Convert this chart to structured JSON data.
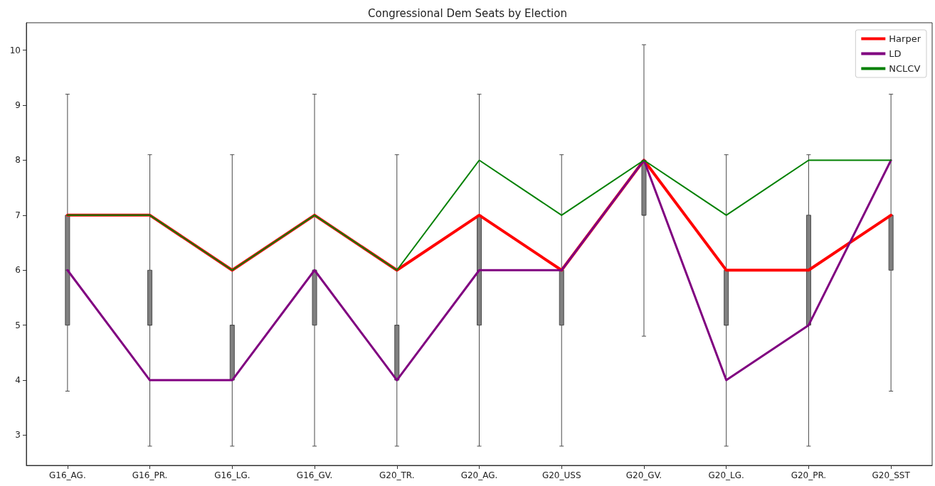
{
  "chart_data": {
    "type": "line",
    "title": "Congressional Dem Seats by Election",
    "categories": [
      "G16_AG.",
      "G16_PR.",
      "G16_LG.",
      "G16_GV.",
      "G20_TR.",
      "G20_AG.",
      "G20_USS",
      "G20_GV.",
      "G20_LG.",
      "G20_PR.",
      "G20_SST"
    ],
    "ylim": [
      2.45,
      10.5
    ],
    "yticks": [
      3,
      4,
      5,
      6,
      7,
      8,
      9,
      10
    ],
    "grid": false,
    "legend": "top right",
    "marker": "none",
    "line_style": "solid",
    "series": [
      {
        "type": "box",
        "color": "#808080",
        "boxes": [
          {
            "low": 3.8,
            "q1": 5,
            "median": 6,
            "q3": 7,
            "high": 9.2
          },
          {
            "low": 2.8,
            "q1": 5,
            "median": 5,
            "q3": 6,
            "high": 8.1
          },
          {
            "low": 2.8,
            "q1": 4,
            "median": 5,
            "q3": 5,
            "high": 8.1
          },
          {
            "low": 2.8,
            "q1": 5,
            "median": 6,
            "q3": 6,
            "high": 9.2
          },
          {
            "low": 2.8,
            "q1": 4,
            "median": 5,
            "q3": 5,
            "high": 8.1
          },
          {
            "low": 2.8,
            "q1": 5,
            "median": 6,
            "q3": 7,
            "high": 9.2
          },
          {
            "low": 2.8,
            "q1": 5,
            "median": 6,
            "q3": 6,
            "high": 8.1
          },
          {
            "low": 4.8,
            "q1": 7,
            "median": 7,
            "q3": 8,
            "high": 10.1
          },
          {
            "low": 2.8,
            "q1": 5,
            "median": 5,
            "q3": 6,
            "high": 8.1
          },
          {
            "low": 2.8,
            "q1": 5,
            "median": 6,
            "q3": 7,
            "high": 8.1
          },
          {
            "low": 3.8,
            "q1": 6,
            "median": 7,
            "q3": 7,
            "high": 9.2
          }
        ]
      },
      {
        "name": "Harper",
        "color": "#ff0000",
        "values": [
          7,
          7,
          6,
          7,
          6,
          7,
          6,
          8,
          6,
          6,
          7
        ]
      },
      {
        "name": "LD",
        "color": "#800080",
        "values": [
          6,
          4,
          4,
          6,
          4,
          6,
          6,
          8,
          4,
          5,
          8
        ]
      },
      {
        "name": "NCLCV",
        "color": "#008000",
        "values": [
          7,
          7,
          6,
          7,
          6,
          8,
          7,
          8,
          7,
          8,
          8
        ]
      }
    ]
  }
}
